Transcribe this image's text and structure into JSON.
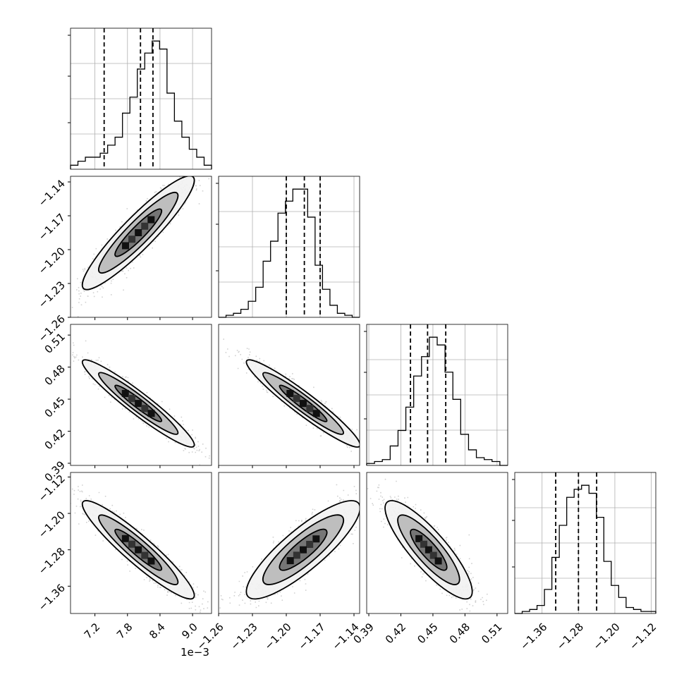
{
  "chart_data": {
    "type": "corner",
    "title": "",
    "grid": true,
    "colors": {
      "line": "#000000",
      "grid": "#b0b0b0",
      "points": "#000000"
    },
    "x_offset_label": "1e−3",
    "parameters": [
      {
        "range": [
          6.75,
          9.35
        ],
        "ticks": [
          7.2,
          7.8,
          8.4,
          9.0
        ],
        "tick_labels": [
          "7.2",
          "7.8",
          "8.4",
          "9.0"
        ],
        "quantiles": [
          7.37,
          8.04,
          8.27
        ],
        "histogram": [
          1,
          2,
          3,
          3,
          4,
          6,
          8,
          14,
          18,
          25,
          29,
          32,
          30,
          19,
          12,
          8,
          5,
          3,
          1
        ]
      },
      {
        "range": [
          -1.26,
          -1.135
        ],
        "ticks": [
          -1.26,
          -1.23,
          -1.2,
          -1.17,
          -1.14
        ],
        "tick_labels": [
          "−1.26",
          "−1.23",
          "−1.20",
          "−1.17",
          "−1.14"
        ],
        "quantiles": [
          -1.2,
          -1.184,
          -1.17
        ],
        "histogram": [
          0,
          0.5,
          1,
          2,
          4,
          7.5,
          14,
          19,
          26,
          29,
          32,
          32,
          25,
          13,
          7,
          3,
          1,
          0.5,
          0
        ]
      },
      {
        "range": [
          0.388,
          0.52
        ],
        "ticks": [
          0.39,
          0.42,
          0.45,
          0.48,
          0.51
        ],
        "tick_labels": [
          "0.39",
          "0.42",
          "0.45",
          "0.48",
          "0.51"
        ],
        "quantiles": [
          0.429,
          0.445,
          0.462
        ],
        "histogram": [
          0.5,
          1,
          1.5,
          5,
          9,
          15,
          23,
          28,
          33,
          31,
          24,
          17,
          8,
          4,
          2,
          1.5,
          1,
          0
        ]
      },
      {
        "range": [
          -1.42,
          -1.11
        ],
        "ticks": [
          -1.36,
          -1.28,
          -1.2,
          -1.12
        ],
        "tick_labels": [
          "−1.36",
          "−1.28",
          "−1.20",
          "−1.12"
        ],
        "quantiles": [
          -1.33,
          -1.28,
          -1.24
        ],
        "histogram": [
          0,
          0.5,
          1,
          2,
          6,
          14,
          22,
          29,
          31,
          32,
          30,
          24,
          13,
          7,
          4,
          1.5,
          1,
          0.5,
          0.5
        ]
      }
    ],
    "pairs": [
      {
        "row": 1,
        "col": 0,
        "corr": 0.92,
        "mean": [
          8.0,
          -1.185
        ],
        "sd": [
          0.43,
          0.021
        ]
      },
      {
        "row": 2,
        "col": 0,
        "corr": -0.95,
        "mean": [
          8.0,
          0.446
        ],
        "sd": [
          0.43,
          0.017
        ]
      },
      {
        "row": 2,
        "col": 1,
        "corr": -0.95,
        "mean": [
          -1.185,
          0.446
        ],
        "sd": [
          0.021,
          0.017
        ]
      },
      {
        "row": 3,
        "col": 0,
        "corr": -0.93,
        "mean": [
          8.0,
          -1.28
        ],
        "sd": [
          0.43,
          0.045
        ]
      },
      {
        "row": 3,
        "col": 1,
        "corr": 0.85,
        "mean": [
          -1.185,
          -1.28
        ],
        "sd": [
          0.021,
          0.045
        ]
      },
      {
        "row": 3,
        "col": 2,
        "corr": -0.85,
        "mean": [
          0.446,
          -1.28
        ],
        "sd": [
          0.017,
          0.045
        ]
      }
    ]
  }
}
